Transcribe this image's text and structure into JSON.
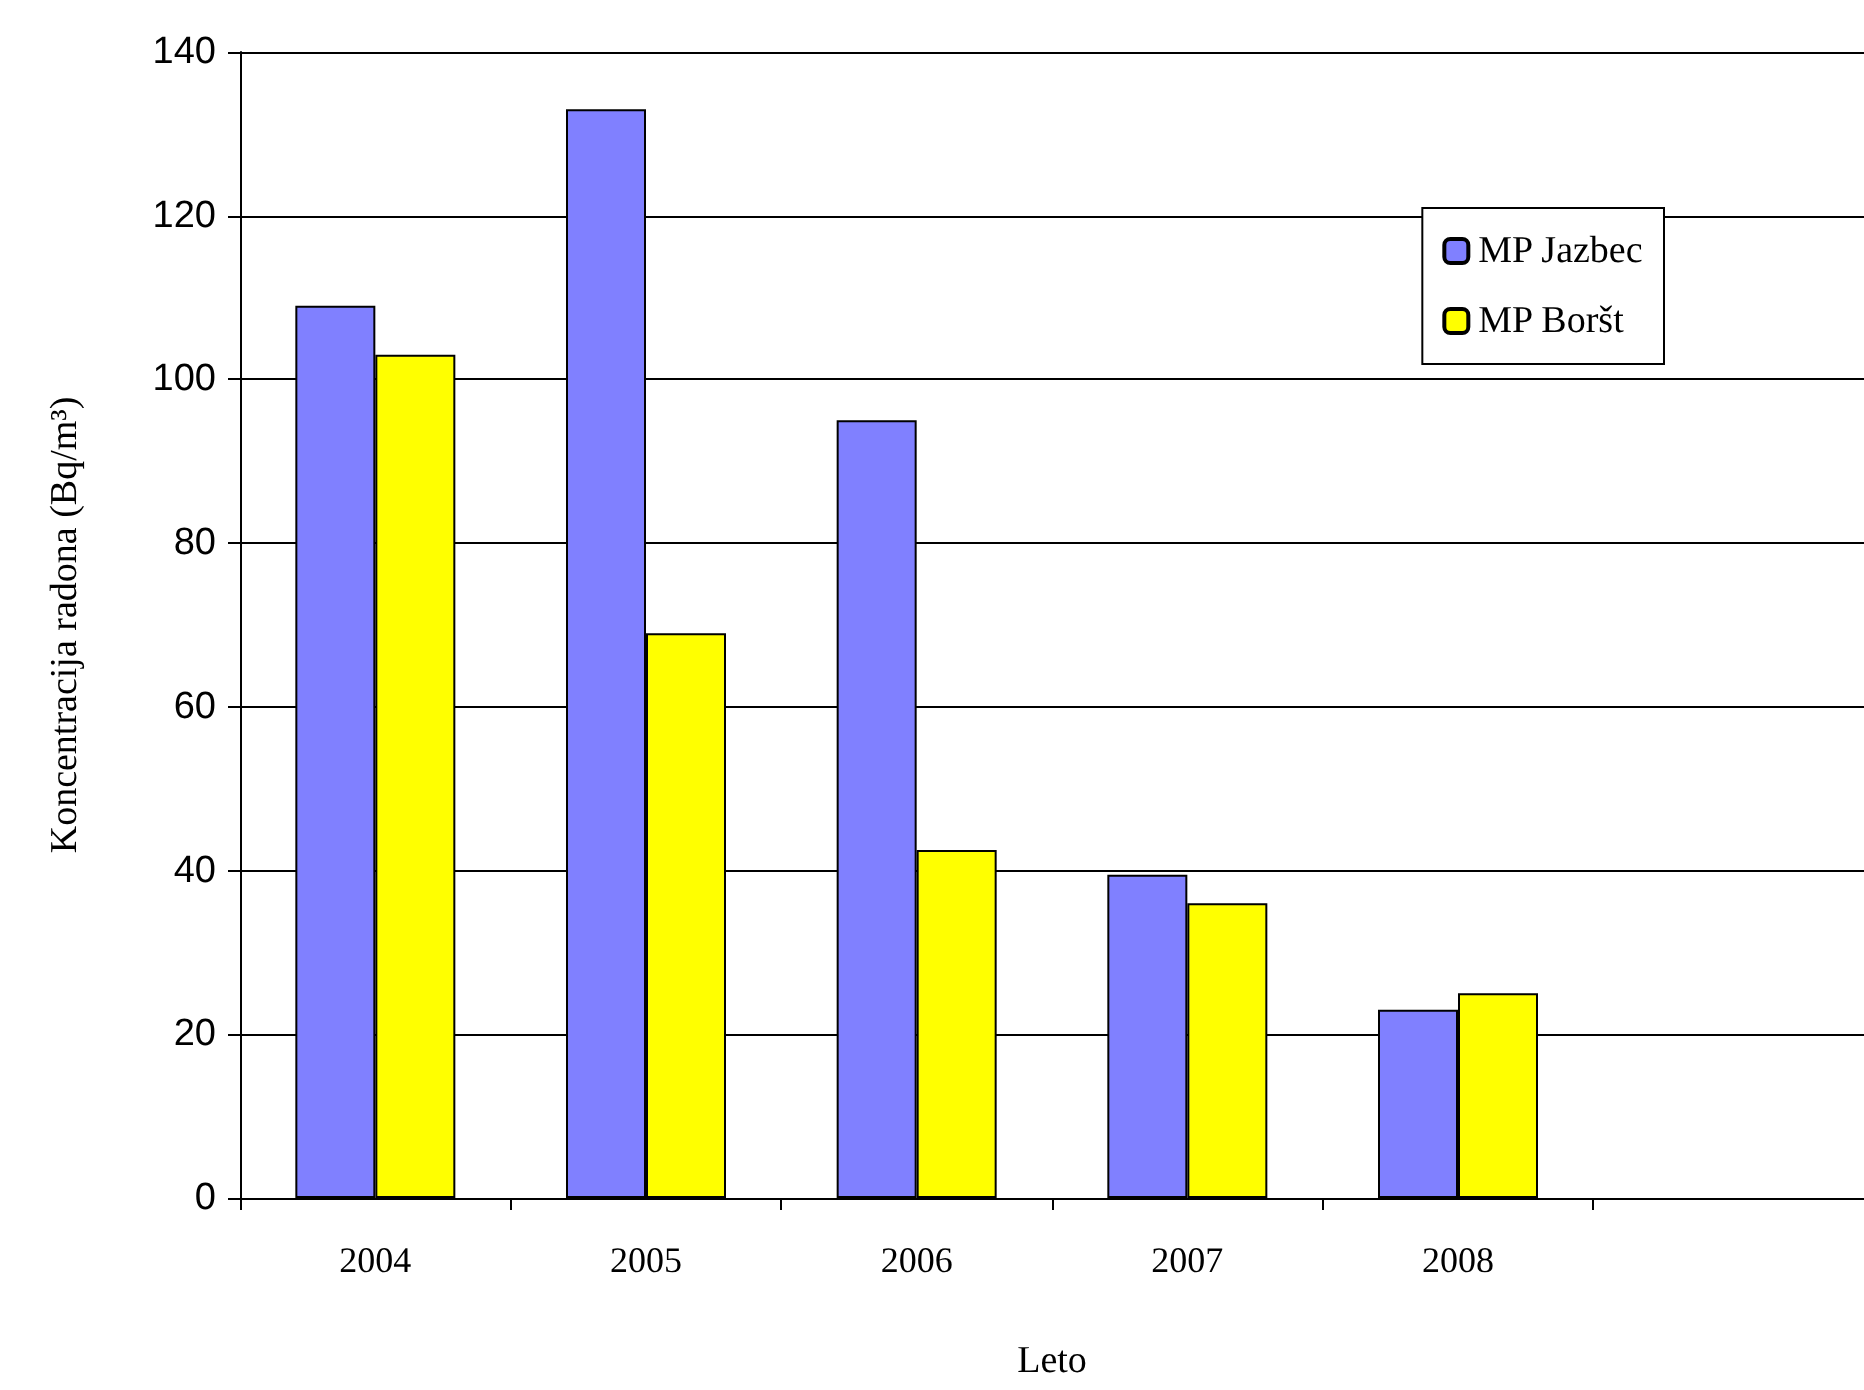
{
  "chart_data": {
    "type": "bar",
    "xlabel": "Leto",
    "ylabel": "Koncentracija radona (Bq/m³)",
    "categories": [
      "2004",
      "2005",
      "2006",
      "2007",
      "2008",
      null
    ],
    "series": [
      {
        "name": "MP Jazbec",
        "color": "#8080ff",
        "values": [
          109,
          133,
          95,
          39.5,
          23,
          null
        ]
      },
      {
        "name": "MP Boršt",
        "color": "#ffff00",
        "values": [
          103,
          69,
          42.5,
          36,
          25,
          null
        ]
      }
    ],
    "ylim": [
      0,
      140
    ],
    "yticks": [
      0,
      20,
      40,
      60,
      80,
      100,
      120,
      140
    ],
    "grid": "y",
    "legend": "top right"
  }
}
